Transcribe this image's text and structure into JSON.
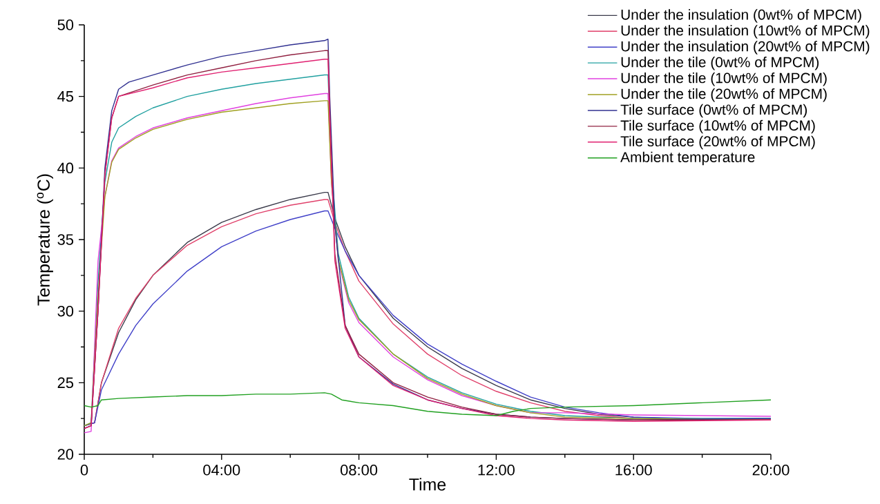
{
  "chart_data": {
    "type": "line",
    "xlabel": "Time",
    "ylabel": "Temperature ($^{o}$C)",
    "xlim": [
      0,
      20
    ],
    "ylim": [
      20,
      50
    ],
    "xticks": [
      0,
      {
        "value": 4,
        "label": "04:00"
      },
      {
        "value": 8,
        "label": "08:00"
      },
      {
        "value": 12,
        "label": "12:00"
      },
      {
        "value": 16,
        "label": "16:00"
      },
      {
        "value": 20,
        "label": "20:00"
      }
    ],
    "yticks": [
      20,
      25,
      30,
      35,
      40,
      45,
      50
    ],
    "legend": "top right",
    "grid": false,
    "marker": "none",
    "line_style": "solid",
    "series": [
      {
        "name": "Under the insulation (0wt% of MPCM)",
        "color": "#3a3a4a",
        "x": [
          0,
          0.3,
          0.5,
          1,
          1.5,
          2,
          3,
          4,
          5,
          6,
          7,
          7.1,
          7.3,
          7.6,
          8,
          9,
          10,
          11,
          12,
          13,
          14,
          15,
          16,
          18,
          20
        ],
        "values": [
          22,
          22.2,
          25,
          28.5,
          30.8,
          32.5,
          34.8,
          36.2,
          37.1,
          37.8,
          38.3,
          38.3,
          36.5,
          34.5,
          32.5,
          29.5,
          27.5,
          26,
          24.8,
          23.8,
          23.2,
          22.8,
          22.6,
          22.4,
          22.4
        ]
      },
      {
        "name": "Under the insulation (10wt% of MPCM)",
        "color": "#e0406a",
        "x": [
          0,
          0.3,
          0.5,
          1,
          1.5,
          2,
          3,
          4,
          5,
          6,
          7,
          7.1,
          7.3,
          7.6,
          8,
          9,
          10,
          11,
          12,
          13,
          14,
          15,
          16,
          18,
          20
        ],
        "values": [
          22,
          22.2,
          25,
          28.8,
          30.9,
          32.5,
          34.6,
          35.9,
          36.8,
          37.4,
          37.8,
          37.8,
          36.2,
          34.2,
          32.1,
          29.1,
          27,
          25.5,
          24.4,
          23.6,
          23,
          22.7,
          22.5,
          22.4,
          22.4
        ]
      },
      {
        "name": "Under the insulation (20wt% of MPCM)",
        "color": "#4040c8",
        "x": [
          0,
          0.3,
          0.5,
          1,
          1.5,
          2,
          3,
          4,
          5,
          6,
          7,
          7.1,
          7.3,
          7.6,
          8,
          9,
          10,
          11,
          12,
          13,
          14,
          15,
          16,
          18,
          20
        ],
        "values": [
          22,
          22.2,
          24.5,
          27,
          29,
          30.5,
          32.8,
          34.5,
          35.6,
          36.4,
          37,
          37,
          35.8,
          34.2,
          32.5,
          29.7,
          27.7,
          26.3,
          25.1,
          24,
          23.3,
          22.9,
          22.6,
          22.5,
          22.5
        ]
      },
      {
        "name": "Under the tile (0wt% of MPCM)",
        "color": "#20a0a0",
        "x": [
          0,
          0.2,
          0.4,
          0.6,
          0.8,
          1,
          1.5,
          2,
          3,
          4,
          5,
          6,
          7,
          7.1,
          7.2,
          7.4,
          7.7,
          8,
          9,
          10,
          11,
          12,
          13,
          14,
          16,
          20
        ],
        "values": [
          22,
          22.2,
          32,
          39,
          41.8,
          42.8,
          43.6,
          44.2,
          45,
          45.5,
          45.9,
          46.2,
          46.5,
          46.5,
          40,
          34,
          31,
          29.5,
          27,
          25.4,
          24.3,
          23.5,
          23,
          22.7,
          22.5,
          22.5
        ]
      },
      {
        "name": "Under the tile (10wt% of MPCM)",
        "color": "#e040e0",
        "x": [
          0,
          0.2,
          0.4,
          0.6,
          0.8,
          1,
          1.5,
          2,
          3,
          4,
          5,
          6,
          7,
          7.1,
          7.2,
          7.4,
          7.7,
          8,
          9,
          10,
          11,
          12,
          13,
          14,
          16,
          20
        ],
        "values": [
          21.5,
          21.6,
          33.5,
          38,
          40.5,
          41.4,
          42.2,
          42.8,
          43.5,
          44,
          44.5,
          44.9,
          45.2,
          45.2,
          39,
          33.5,
          30.6,
          29.2,
          26.8,
          25.2,
          24.1,
          23.4,
          22.9,
          22.9,
          22.75,
          22.65
        ]
      },
      {
        "name": "Under the tile (20wt% of MPCM)",
        "color": "#a0a020",
        "x": [
          0,
          0.2,
          0.4,
          0.6,
          0.8,
          1,
          1.5,
          2,
          3,
          4,
          5,
          6,
          7,
          7.1,
          7.2,
          7.4,
          7.7,
          8,
          9,
          10,
          11,
          12,
          13,
          14,
          16,
          20
        ],
        "values": [
          22,
          22.2,
          31,
          38,
          40.4,
          41.3,
          42.1,
          42.7,
          43.4,
          43.9,
          44.2,
          44.5,
          44.7,
          44.7,
          39,
          33.6,
          30.8,
          29.4,
          27,
          25.3,
          24.2,
          23.4,
          22.9,
          22.6,
          22.5,
          22.4
        ]
      },
      {
        "name": "Tile surface (0wt% of MPCM)",
        "color": "#303090",
        "x": [
          0,
          0.2,
          0.4,
          0.6,
          0.8,
          1,
          1.3,
          2,
          3,
          4,
          5,
          6,
          7,
          7.1,
          7.15,
          7.3,
          7.6,
          8,
          9,
          10,
          11,
          12,
          13,
          14,
          16,
          20
        ],
        "values": [
          21.8,
          22,
          30,
          40,
          44,
          45.5,
          46,
          46.5,
          47.2,
          47.8,
          48.2,
          48.6,
          48.9,
          49,
          45,
          36,
          29,
          26.8,
          24.9,
          23.8,
          23.2,
          22.8,
          22.6,
          22.5,
          22.4,
          22.5
        ]
      },
      {
        "name": "Tile surface (10wt% of MPCM)",
        "color": "#902040",
        "x": [
          0,
          0.2,
          0.4,
          0.6,
          0.8,
          1,
          1.5,
          2,
          3,
          4,
          5,
          6,
          7,
          7.1,
          7.15,
          7.3,
          7.6,
          8,
          9,
          10,
          11,
          12,
          13,
          14,
          16,
          20
        ],
        "values": [
          21.8,
          22,
          30,
          39.5,
          43.5,
          45,
          45.4,
          45.8,
          46.5,
          47,
          47.5,
          47.9,
          48.2,
          48.2,
          44,
          34,
          29,
          27,
          25,
          24,
          23.3,
          22.8,
          22.6,
          22.5,
          22.4,
          22.4
        ]
      },
      {
        "name": "Tile surface (20wt% of MPCM)",
        "color": "#e02070",
        "x": [
          0,
          0.2,
          0.4,
          0.6,
          0.8,
          1,
          1.5,
          2,
          3,
          4,
          5,
          6,
          7,
          7.1,
          7.15,
          7.3,
          7.6,
          8,
          9,
          10,
          11,
          12,
          13,
          14,
          16,
          20
        ],
        "values": [
          21.8,
          22,
          30,
          39.5,
          43.5,
          45,
          45.3,
          45.6,
          46.3,
          46.7,
          47,
          47.3,
          47.6,
          47.6,
          43.5,
          33.5,
          28.8,
          26.8,
          24.8,
          23.8,
          23.2,
          22.7,
          22.5,
          22.4,
          22.3,
          22.4
        ]
      },
      {
        "name": "Ambient temperature",
        "color": "#20a020",
        "x": [
          0,
          0.2,
          0.4,
          0.5,
          1,
          2,
          3,
          4,
          5,
          6,
          7,
          7.2,
          7.5,
          8,
          9,
          10,
          11,
          12,
          12.5,
          13,
          14,
          16,
          18,
          20
        ],
        "values": [
          23.4,
          23.3,
          23.4,
          23.8,
          23.9,
          24,
          24.1,
          24.1,
          24.2,
          24.2,
          24.3,
          24.2,
          23.8,
          23.6,
          23.4,
          23,
          22.8,
          22.7,
          23,
          23.2,
          23.3,
          23.4,
          23.6,
          23.8
        ]
      }
    ]
  }
}
